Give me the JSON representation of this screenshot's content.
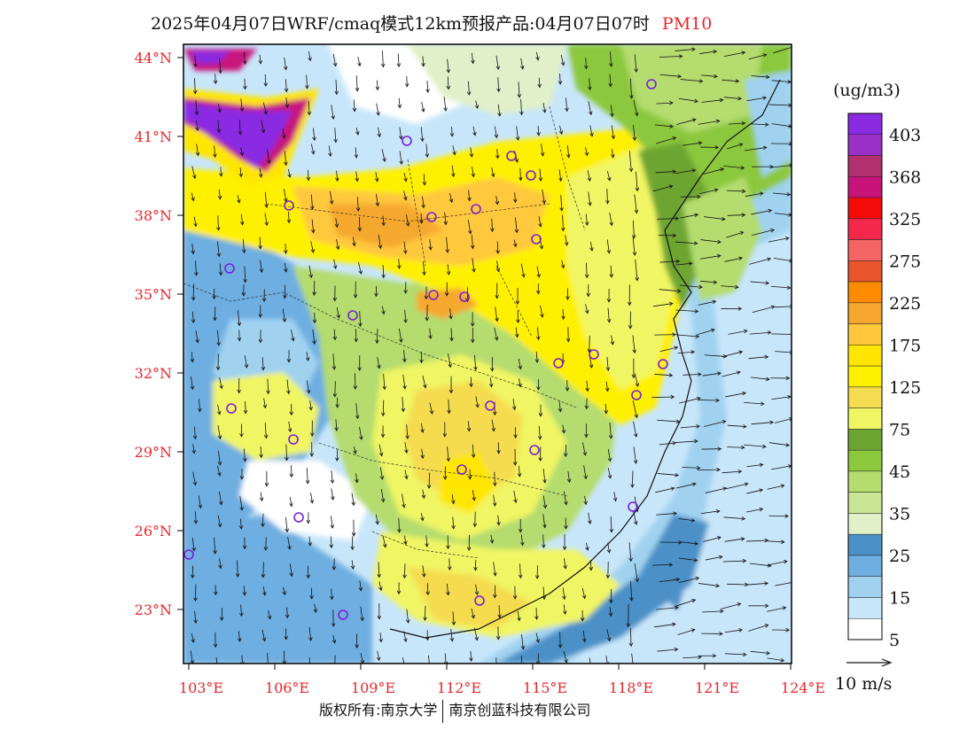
{
  "title": {
    "main": "2025年04月07日WRF/cmaq模式12km预报产品:04月07日07时",
    "pollutant": "PM10"
  },
  "map": {
    "lat_labels": [
      "44°N",
      "41°N",
      "38°N",
      "35°N",
      "32°N",
      "29°N",
      "26°N",
      "23°N"
    ],
    "lon_labels": [
      "103°E",
      "106°E",
      "109°E",
      "112°E",
      "115°E",
      "118°E",
      "121°E",
      "124°E"
    ]
  },
  "colorbar": {
    "unit": "(ug/m3)",
    "labels": [
      "403",
      "368",
      "325",
      "275",
      "225",
      "175",
      "125",
      "75",
      "45",
      "35",
      "25",
      "15",
      "5"
    ],
    "colors": [
      "#8a2be2",
      "#9b30c8",
      "#b23070",
      "#c8147a",
      "#f50a0a",
      "#f5284b",
      "#f56464",
      "#e8552d",
      "#ff8c00",
      "#f5a82d",
      "#ffc83c",
      "#ffe600",
      "#fff000",
      "#f5dc50",
      "#f0f564",
      "#6ea532",
      "#8cc83c",
      "#b4dc6e",
      "#c8e696",
      "#e1f0c8",
      "#4b91c8",
      "#6eaee1",
      "#a0d2f0",
      "#c8e6fa",
      "#ffffff"
    ]
  },
  "wind_legend": {
    "label": "10 m/s"
  },
  "footer": {
    "left": "版权所有:南京大学",
    "right": "南京创蓝科技有限公司"
  },
  "cities_count": 26
}
